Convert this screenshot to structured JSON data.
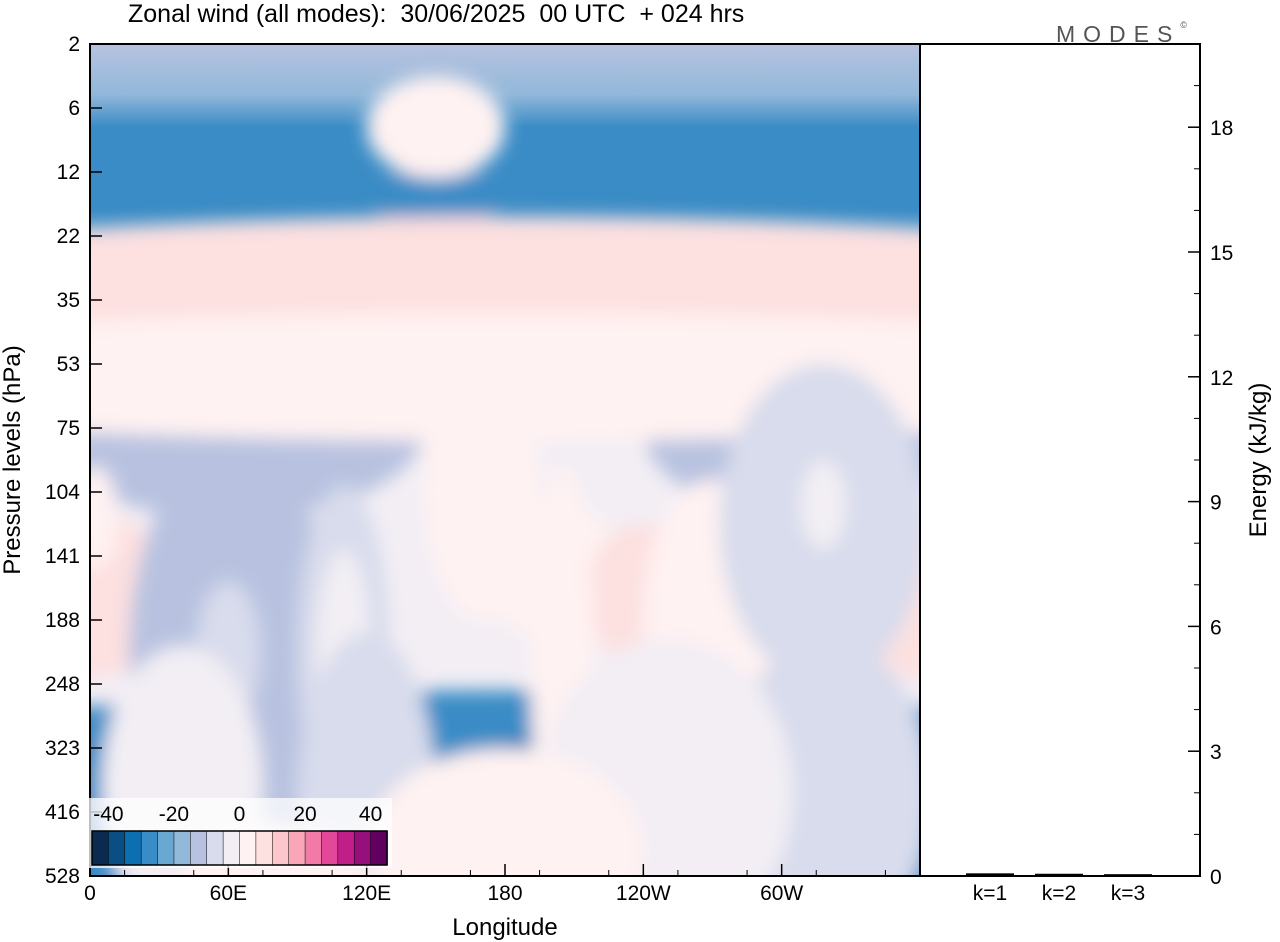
{
  "title": "Zonal wind (all modes):  30/06/2025  00 UTC  + 024 hrs",
  "logo": "MODES",
  "logo_mark": "©",
  "chart_data": [
    {
      "type": "heatmap",
      "xlabel": "Longitude",
      "ylabel": "Pressure levels (hPa)",
      "x_ticks": [
        "0",
        "60E",
        "120E",
        "180",
        "120W",
        "60W"
      ],
      "y_ticks": [
        "2",
        "6",
        "12",
        "22",
        "35",
        "53",
        "75",
        "104",
        "141",
        "188",
        "248",
        "323",
        "416",
        "528"
      ],
      "colorbar": {
        "labels": [
          "-40",
          "-20",
          "0",
          "20",
          "40"
        ],
        "range": [
          -45,
          45
        ],
        "step": 5,
        "colors": [
          "#0a2a4f",
          "#0b4e84",
          "#0d6fb0",
          "#3a8cc6",
          "#68a8d2",
          "#92b8da",
          "#b8c2e0",
          "#d8dcec",
          "#f2eef4",
          "#fff2f2",
          "#fde0e0",
          "#fcc6cc",
          "#f9a6b8",
          "#f27aa6",
          "#e2479a",
          "#c21e8a",
          "#95107c",
          "#62005f"
        ]
      },
      "features": [
        {
          "cx": 150,
          "cy": 2.7,
          "rx": 25,
          "ry": 0.9,
          "value": -30
        },
        {
          "cx": 60,
          "cy": 6.0,
          "rx": 85,
          "ry": 1.4,
          "value": -15
        },
        {
          "cx": 310,
          "cy": 6.0,
          "rx": 70,
          "ry": 1.4,
          "value": -15
        },
        {
          "cx": 150,
          "cy": 1.3,
          "rx": 30,
          "ry": 0.8,
          "value": 2
        },
        {
          "cx": 180,
          "cy": 12.0,
          "rx": 360,
          "ry": 1.9,
          "value": -27
        },
        {
          "cx": 100,
          "cy": 12.0,
          "rx": 55,
          "ry": 1.0,
          "value": -32
        },
        {
          "cx": 210,
          "cy": 12.0,
          "rx": 70,
          "ry": 1.2,
          "value": -33
        },
        {
          "cx": 67,
          "cy": 9.0,
          "rx": 18,
          "ry": 0.5,
          "value": -8
        },
        {
          "cx": 180,
          "cy": 4.1,
          "rx": 360,
          "ry": 1.4,
          "value": 5
        },
        {
          "cx": 180,
          "cy": 5.2,
          "rx": 360,
          "ry": 1.0,
          "value": 1
        },
        {
          "cx": 0,
          "cy": 8.6,
          "rx": 35,
          "ry": 1.3,
          "value": 7
        },
        {
          "cx": 360,
          "cy": 8.6,
          "rx": 35,
          "ry": 1.3,
          "value": 7
        },
        {
          "cx": 200,
          "cy": 8.2,
          "rx": 30,
          "ry": 1.1,
          "value": 4
        },
        {
          "cx": 240,
          "cy": 8.6,
          "rx": 25,
          "ry": 1.1,
          "value": 7
        },
        {
          "cx": 298,
          "cy": 8.2,
          "rx": 20,
          "ry": 0.9,
          "value": 5
        },
        {
          "cx": 62,
          "cy": 9.5,
          "rx": 45,
          "ry": 3.2,
          "value": -12
        },
        {
          "cx": 66,
          "cy": 9.5,
          "rx": 30,
          "ry": 2.2,
          "value": -14
        },
        {
          "cx": 60,
          "cy": 9.5,
          "rx": 14,
          "ry": 1.1,
          "value": -10
        },
        {
          "cx": 110,
          "cy": 9.5,
          "rx": 20,
          "ry": 2.6,
          "value": -10
        },
        {
          "cx": 110,
          "cy": 9.5,
          "rx": 12,
          "ry": 1.6,
          "value": -5
        },
        {
          "cx": 170,
          "cy": 7.0,
          "rx": 25,
          "ry": 2.0,
          "value": 3
        },
        {
          "cx": 205,
          "cy": 9.8,
          "rx": 14,
          "ry": 3.2,
          "value": 3
        },
        {
          "cx": 270,
          "cy": 9.0,
          "rx": 30,
          "ry": 2.2,
          "value": 3
        },
        {
          "cx": 318,
          "cy": 7.5,
          "rx": 45,
          "ry": 2.5,
          "value": -6
        },
        {
          "cx": 318,
          "cy": 7.2,
          "rx": 10,
          "ry": 0.7,
          "value": -4
        },
        {
          "cx": 2,
          "cy": 7.4,
          "rx": 10,
          "ry": 0.8,
          "value": 3
        },
        {
          "cx": 320,
          "cy": 11.7,
          "rx": 45,
          "ry": 2.4,
          "value": -6
        },
        {
          "cx": 40,
          "cy": 11.6,
          "rx": 35,
          "ry": 2.2,
          "value": -2
        },
        {
          "cx": 120,
          "cy": 11.8,
          "rx": 30,
          "ry": 2.6,
          "value": -6
        },
        {
          "cx": 250,
          "cy": 11.7,
          "rx": 55,
          "ry": 2.4,
          "value": -4
        },
        {
          "cx": 180,
          "cy": 12.6,
          "rx": 60,
          "ry": 1.6,
          "value": 2
        },
        {
          "cx": 80,
          "cy": 13.0,
          "rx": 40,
          "ry": 0.8,
          "value": 1
        }
      ]
    },
    {
      "type": "bar",
      "ylabel": "Energy (kJ/kg)",
      "categories": [
        "k=1",
        "k=2",
        "k=3"
      ],
      "values": [
        0.04,
        0.03,
        0.02
      ],
      "ylim": [
        0,
        20
      ],
      "y_ticks": [
        0,
        3,
        6,
        9,
        12,
        15,
        18
      ]
    }
  ]
}
